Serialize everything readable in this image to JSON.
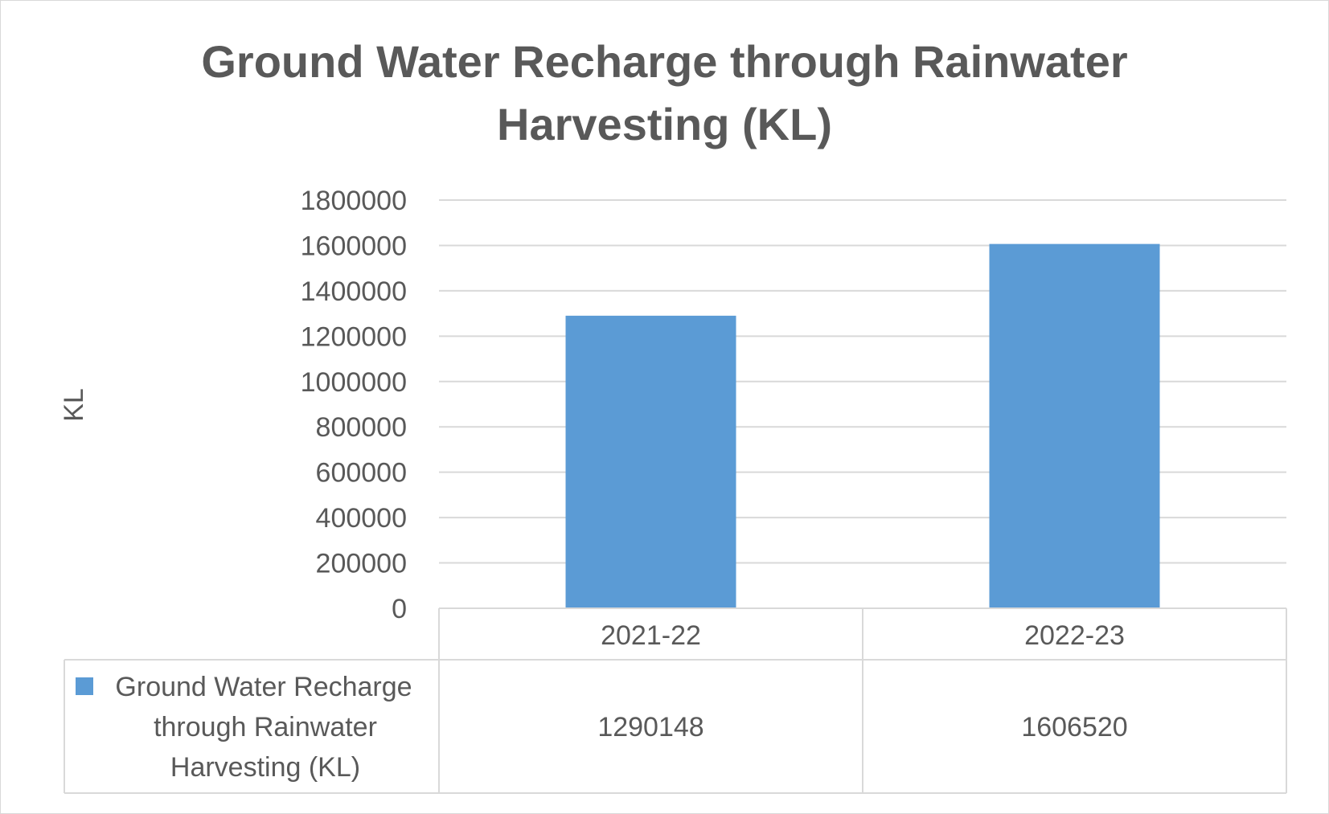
{
  "chart_data": {
    "type": "bar",
    "title": "Ground Water Recharge through Rainwater Harvesting (KL)",
    "xlabel": "",
    "ylabel": "KL",
    "categories": [
      "2021-22",
      "2022-23"
    ],
    "series": [
      {
        "name": "Ground Water Recharge through Rainwater Harvesting (KL)",
        "name_lines": [
          "Ground Water Recharge",
          "through Rainwater",
          "Harvesting (KL)"
        ],
        "values": [
          1290148,
          1606520
        ],
        "value_labels": [
          "1290148",
          "1606520"
        ],
        "color": "#5b9bd5"
      }
    ],
    "ylim": [
      0,
      1800000
    ],
    "yticks": [
      0,
      200000,
      400000,
      600000,
      800000,
      1000000,
      1200000,
      1400000,
      1600000,
      1800000
    ],
    "ytick_labels": [
      "0",
      "200000",
      "400000",
      "600000",
      "800000",
      "1000000",
      "1200000",
      "1400000",
      "1600000",
      "1800000"
    ],
    "grid": true,
    "legend": "data-table",
    "data_table": true
  }
}
